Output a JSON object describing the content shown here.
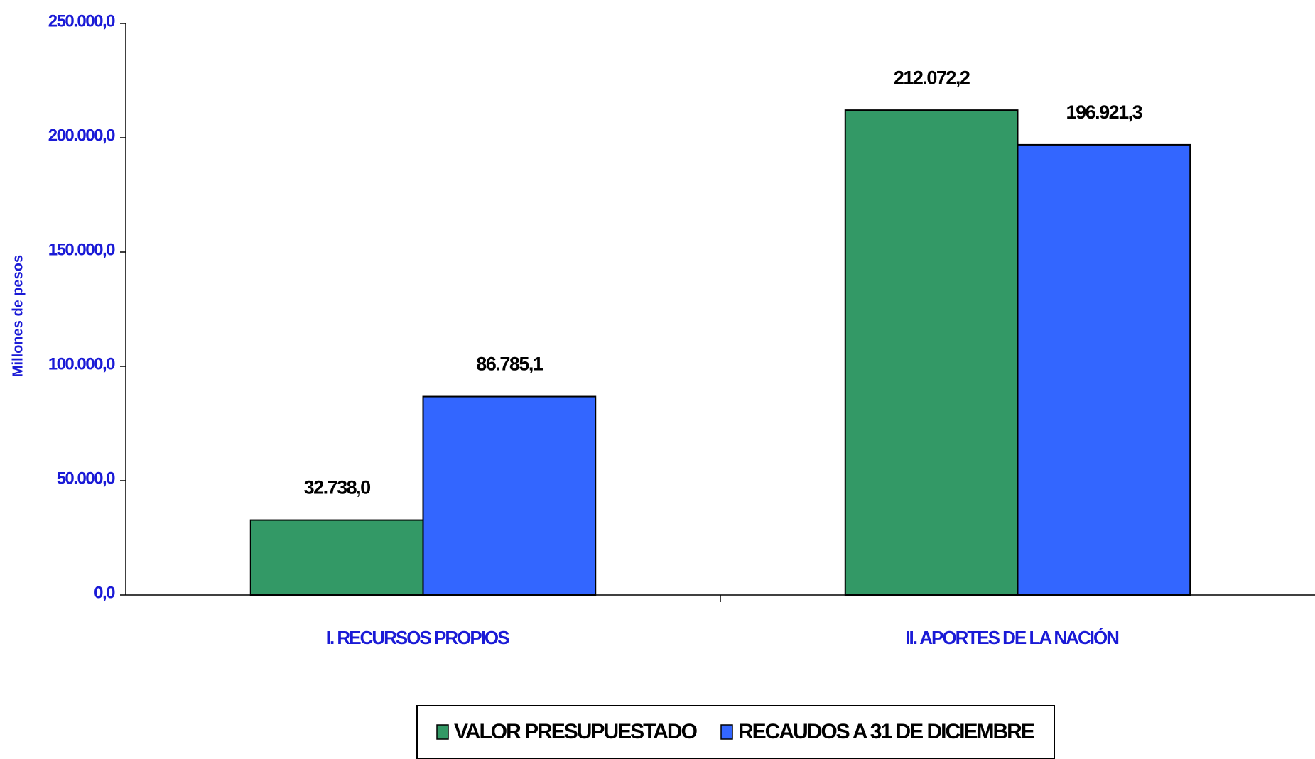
{
  "chart_data": {
    "type": "bar",
    "y_label": "Millones de pesos",
    "categories": [
      "I. RECURSOS PROPIOS",
      "II. APORTES DE LA NACIÓN"
    ],
    "series": [
      {
        "name": "VALOR PRESUPUESTADO",
        "color": "#339966",
        "values": [
          32738.0,
          212072.2
        ],
        "value_labels": [
          "32.738,0",
          "212.072,2"
        ]
      },
      {
        "name": "RECAUDOS A 31 DE DICIEMBRE",
        "color": "#3366ff",
        "values": [
          86785.1,
          196921.3
        ],
        "value_labels": [
          "86.785,1",
          "196.921,3"
        ]
      }
    ],
    "ylim": [
      0,
      250000
    ],
    "yticks": [
      {
        "value": 0,
        "label": "0,0"
      },
      {
        "value": 50000,
        "label": "50.000,0"
      },
      {
        "value": 100000,
        "label": "100.000,0"
      },
      {
        "value": 150000,
        "label": "150.000,0"
      },
      {
        "value": 200000,
        "label": "200.000,0"
      },
      {
        "value": 250000,
        "label": "250.000,0"
      }
    ],
    "grid": false,
    "legend": "bottom"
  }
}
